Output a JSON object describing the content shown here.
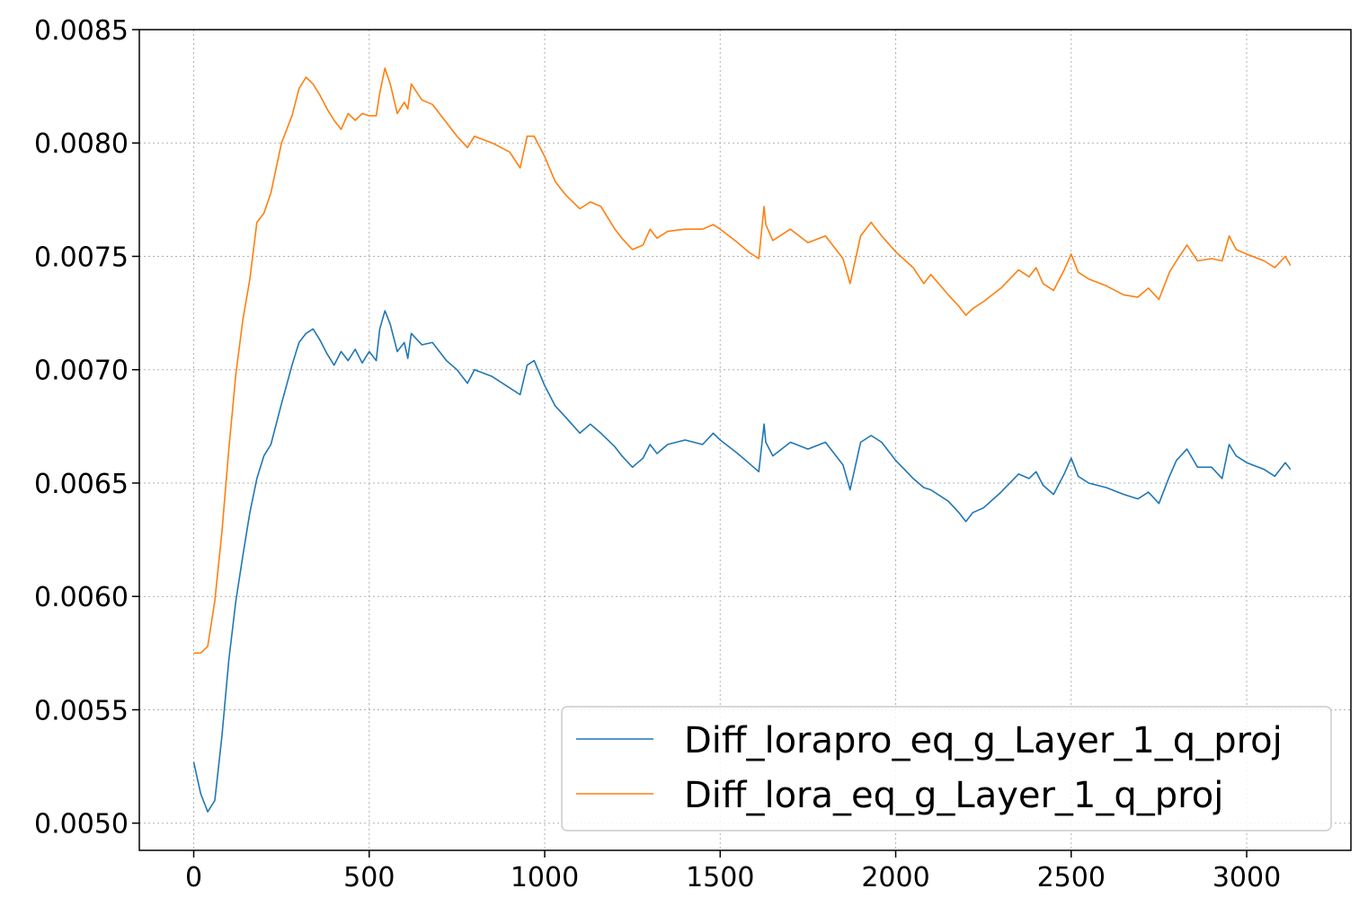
{
  "chart_data": {
    "type": "line",
    "title": "",
    "xlabel": "",
    "ylabel": "",
    "xlim": [
      -155,
      3297
    ],
    "ylim": [
      0.00488,
      0.0085
    ],
    "xticks": [
      0,
      500,
      1000,
      1500,
      2000,
      2500,
      3000
    ],
    "xtick_labels": [
      "0",
      "500",
      "1000",
      "1500",
      "2000",
      "2500",
      "3000"
    ],
    "yticks": [
      0.005,
      0.0055,
      0.006,
      0.0065,
      0.007,
      0.0075,
      0.008,
      0.0085
    ],
    "ytick_labels": [
      "0.0050",
      "0.0055",
      "0.0060",
      "0.0065",
      "0.0070",
      "0.0075",
      "0.0080",
      "0.0085"
    ],
    "grid": true,
    "legend_position": "lower-right",
    "series": [
      {
        "name": "Diff_lorapro_eq_g_Layer_1_q_proj",
        "color": "#1f77b4",
        "x": [
          0,
          20,
          40,
          60,
          80,
          100,
          120,
          140,
          160,
          180,
          200,
          220,
          250,
          280,
          300,
          320,
          340,
          360,
          380,
          400,
          420,
          440,
          460,
          480,
          500,
          520,
          530,
          545,
          560,
          580,
          600,
          610,
          620,
          650,
          680,
          700,
          720,
          750,
          780,
          800,
          850,
          900,
          930,
          950,
          970,
          1000,
          1030,
          1060,
          1100,
          1130,
          1160,
          1200,
          1220,
          1250,
          1280,
          1300,
          1320,
          1350,
          1400,
          1450,
          1480,
          1500,
          1550,
          1580,
          1610,
          1625,
          1630,
          1650,
          1700,
          1750,
          1800,
          1850,
          1870,
          1900,
          1930,
          1960,
          2000,
          2050,
          2080,
          2100,
          2150,
          2180,
          2200,
          2220,
          2250,
          2300,
          2350,
          2380,
          2400,
          2420,
          2450,
          2480,
          2500,
          2520,
          2550,
          2600,
          2650,
          2690,
          2720,
          2750,
          2780,
          2800,
          2830,
          2860,
          2900,
          2930,
          2950,
          2970,
          3000,
          3050,
          3080,
          3110,
          3125
        ],
        "values": [
          0.00527,
          0.00513,
          0.00505,
          0.0051,
          0.00538,
          0.00572,
          0.00598,
          0.00618,
          0.00637,
          0.00652,
          0.00662,
          0.00667,
          0.00685,
          0.00702,
          0.00712,
          0.00716,
          0.00718,
          0.00713,
          0.00707,
          0.00702,
          0.00708,
          0.00704,
          0.00709,
          0.00703,
          0.00708,
          0.00704,
          0.00718,
          0.00726,
          0.0072,
          0.00708,
          0.00712,
          0.00705,
          0.00716,
          0.00711,
          0.00712,
          0.00708,
          0.00704,
          0.007,
          0.00694,
          0.007,
          0.00697,
          0.00692,
          0.00689,
          0.00702,
          0.00704,
          0.00693,
          0.00684,
          0.00679,
          0.00672,
          0.00676,
          0.00672,
          0.00666,
          0.00662,
          0.00657,
          0.00661,
          0.00667,
          0.00663,
          0.00667,
          0.00669,
          0.00667,
          0.00672,
          0.00669,
          0.00663,
          0.00659,
          0.00655,
          0.00676,
          0.00668,
          0.00662,
          0.00668,
          0.00665,
          0.00668,
          0.00658,
          0.00647,
          0.00668,
          0.00671,
          0.00668,
          0.0066,
          0.00652,
          0.00648,
          0.00647,
          0.00642,
          0.00637,
          0.00633,
          0.00637,
          0.00639,
          0.00646,
          0.00654,
          0.00652,
          0.00655,
          0.00649,
          0.00645,
          0.00654,
          0.00661,
          0.00653,
          0.0065,
          0.00648,
          0.00645,
          0.00643,
          0.00646,
          0.00641,
          0.00653,
          0.0066,
          0.00665,
          0.00657,
          0.00657,
          0.00652,
          0.00667,
          0.00662,
          0.00659,
          0.00656,
          0.00653,
          0.00659,
          0.00656
        ]
      },
      {
        "name": "Diff_lora_eq_g_Layer_1_q_proj",
        "color": "#ff7f0e",
        "x": [
          0,
          20,
          40,
          60,
          80,
          100,
          120,
          140,
          160,
          180,
          200,
          220,
          250,
          280,
          300,
          320,
          340,
          360,
          380,
          400,
          420,
          440,
          460,
          480,
          500,
          520,
          530,
          545,
          560,
          580,
          600,
          610,
          620,
          650,
          680,
          700,
          720,
          750,
          780,
          800,
          850,
          900,
          930,
          950,
          970,
          1000,
          1030,
          1060,
          1100,
          1130,
          1160,
          1200,
          1220,
          1250,
          1280,
          1300,
          1320,
          1350,
          1400,
          1450,
          1480,
          1500,
          1550,
          1580,
          1610,
          1625,
          1630,
          1650,
          1700,
          1750,
          1800,
          1850,
          1870,
          1900,
          1930,
          1960,
          2000,
          2050,
          2080,
          2100,
          2150,
          2180,
          2200,
          2220,
          2250,
          2300,
          2350,
          2380,
          2400,
          2420,
          2450,
          2480,
          2500,
          2520,
          2550,
          2600,
          2650,
          2690,
          2720,
          2750,
          2780,
          2800,
          2830,
          2860,
          2900,
          2930,
          2950,
          2970,
          3000,
          3050,
          3080,
          3110,
          3125
        ],
        "values": [
          0.00575,
          0.00575,
          0.00578,
          0.00598,
          0.00628,
          0.00665,
          0.00698,
          0.00722,
          0.0074,
          0.00765,
          0.00769,
          0.00778,
          0.008,
          0.00812,
          0.00824,
          0.00829,
          0.00826,
          0.00821,
          0.00815,
          0.0081,
          0.00806,
          0.00813,
          0.0081,
          0.00813,
          0.00812,
          0.00812,
          0.00822,
          0.00833,
          0.00826,
          0.00813,
          0.00818,
          0.00815,
          0.00826,
          0.00819,
          0.00817,
          0.00813,
          0.00809,
          0.00803,
          0.00798,
          0.00803,
          0.008,
          0.00796,
          0.00789,
          0.00803,
          0.00803,
          0.00794,
          0.00783,
          0.00777,
          0.00771,
          0.00774,
          0.00772,
          0.00762,
          0.00758,
          0.00753,
          0.00755,
          0.00762,
          0.00758,
          0.00761,
          0.00762,
          0.00762,
          0.00764,
          0.00762,
          0.00756,
          0.00752,
          0.00749,
          0.00772,
          0.00764,
          0.00757,
          0.00762,
          0.00756,
          0.00759,
          0.00749,
          0.00738,
          0.00759,
          0.00765,
          0.00759,
          0.00752,
          0.00745,
          0.00738,
          0.00742,
          0.00733,
          0.00728,
          0.00724,
          0.00727,
          0.0073,
          0.00736,
          0.00744,
          0.00741,
          0.00745,
          0.00738,
          0.00735,
          0.00744,
          0.00751,
          0.00743,
          0.0074,
          0.00737,
          0.00733,
          0.00732,
          0.00736,
          0.00731,
          0.00743,
          0.00748,
          0.00755,
          0.00748,
          0.00749,
          0.00748,
          0.00759,
          0.00753,
          0.00751,
          0.00748,
          0.00745,
          0.0075,
          0.00746
        ]
      }
    ]
  }
}
